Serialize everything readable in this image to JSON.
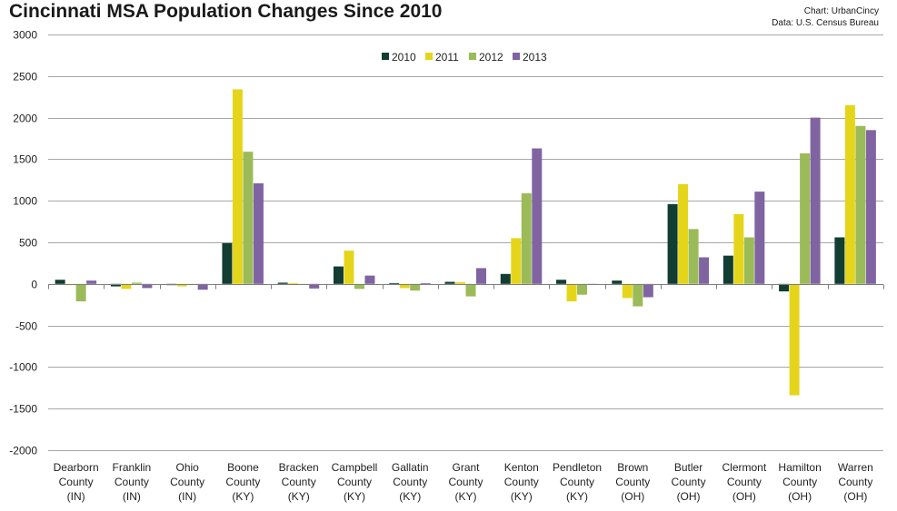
{
  "colors": {
    "s2010": "#123d33",
    "s2011": "#e5d51a",
    "s2012": "#9bbb59",
    "s2013": "#8064a2",
    "grid": "#a6a6a6",
    "axis": "#7f7f7f"
  },
  "chart_data": {
    "type": "bar",
    "title": "Cincinnati MSA Population Changes Since 2010",
    "credit": "Chart: UrbanCincy",
    "source": "Data: U.S. Census Bureau",
    "xlabel": "",
    "ylabel": "",
    "ylim": [
      -2000,
      3000
    ],
    "yticks": [
      "3000",
      "2500",
      "2000",
      "1500",
      "1000",
      "500",
      "0",
      "-500",
      "-1000",
      "-1500",
      "-2000"
    ],
    "ytick_values": [
      3000,
      2500,
      2000,
      1500,
      1000,
      500,
      0,
      -500,
      -1000,
      -1500,
      -2000
    ],
    "grid": true,
    "legend_position": "top-center",
    "categories": [
      [
        "Dearborn",
        "County",
        "(IN)"
      ],
      [
        "Franklin",
        "County",
        "(IN)"
      ],
      [
        "Ohio",
        "County",
        "(IN)"
      ],
      [
        "Boone",
        "County",
        "(KY)"
      ],
      [
        "Bracken",
        "County",
        "(KY)"
      ],
      [
        "Campbell",
        "County",
        "(KY)"
      ],
      [
        "Gallatin",
        "County",
        "(KY)"
      ],
      [
        "Grant",
        "County",
        "(KY)"
      ],
      [
        "Kenton",
        "County",
        "(KY)"
      ],
      [
        "Pendleton",
        "County",
        "(KY)"
      ],
      [
        "Brown",
        "County",
        "(OH)"
      ],
      [
        "Butler",
        "County",
        "(OH)"
      ],
      [
        "Clermont",
        "County",
        "(OH)"
      ],
      [
        "Hamilton",
        "County",
        "(OH)"
      ],
      [
        "Warren",
        "County",
        "(OH)"
      ]
    ],
    "series": [
      {
        "name": "2010",
        "color_key": "s2010",
        "values": [
          50,
          -30,
          -15,
          490,
          15,
          210,
          10,
          25,
          120,
          50,
          40,
          960,
          340,
          -90,
          560
        ]
      },
      {
        "name": "2011",
        "color_key": "s2011",
        "values": [
          -15,
          -60,
          -30,
          2340,
          10,
          400,
          -50,
          20,
          550,
          -210,
          -170,
          1200,
          840,
          -1340,
          2150
        ]
      },
      {
        "name": "2012",
        "color_key": "s2012",
        "values": [
          -210,
          15,
          0,
          1590,
          -10,
          -60,
          -80,
          -150,
          1090,
          -130,
          -270,
          660,
          560,
          1570,
          1900
        ]
      },
      {
        "name": "2013",
        "color_key": "s2013",
        "values": [
          40,
          -50,
          -70,
          1210,
          -55,
          100,
          10,
          190,
          1630,
          0,
          -160,
          320,
          1110,
          2000,
          1850
        ]
      }
    ]
  }
}
